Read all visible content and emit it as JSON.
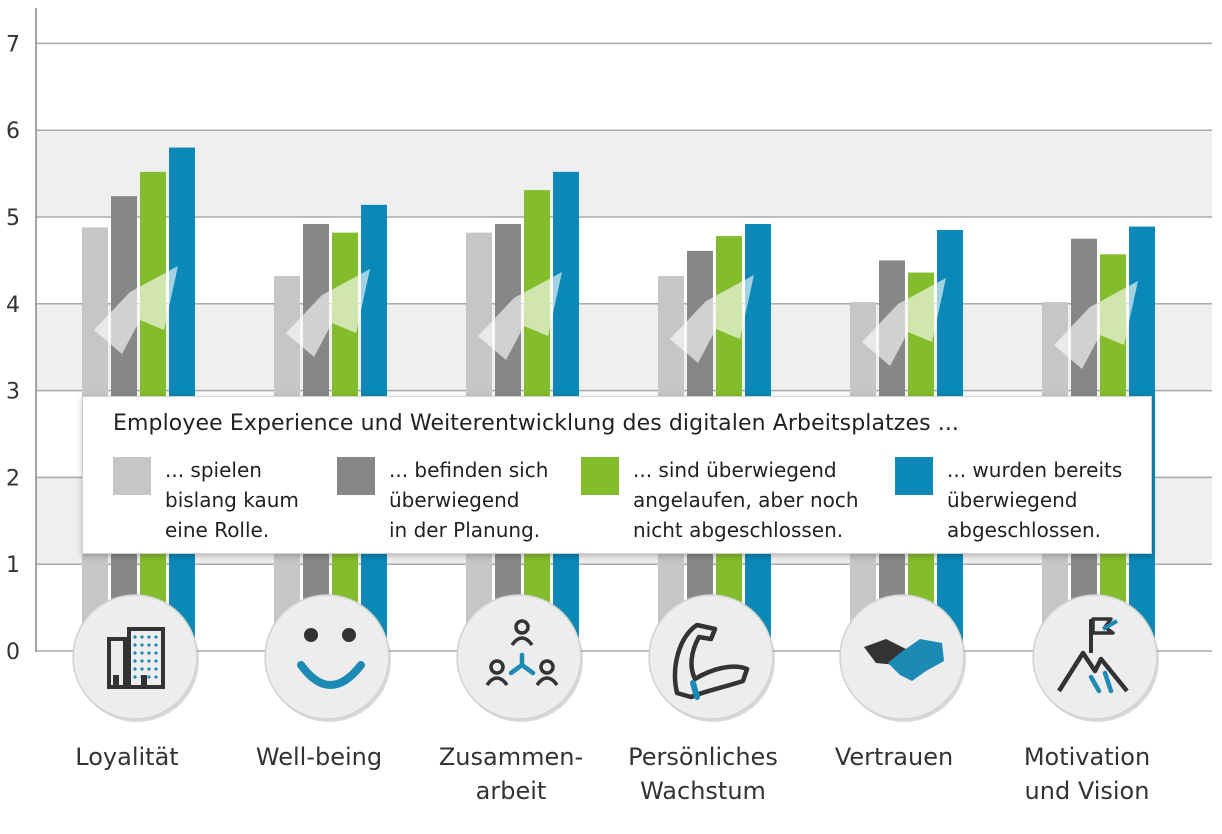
{
  "chart_data": {
    "type": "bar",
    "categories": [
      "Loyalität",
      "Well-being",
      "Zusammen-\narbeit",
      "Persönliches\nWachstum",
      "Vertrauen",
      "Motivation\nund Vision"
    ],
    "series": [
      {
        "name": "... spielen\nbislang kaum\neine Rolle.",
        "color": "#c6c6c6",
        "values": [
          4.88,
          4.32,
          4.82,
          4.32,
          4.02,
          4.02
        ]
      },
      {
        "name": "... befinden sich\nüberwiegend\nin der Planung.",
        "color": "#878787",
        "values": [
          5.24,
          4.92,
          4.92,
          4.61,
          4.5,
          4.75
        ]
      },
      {
        "name": "... sind überwiegend\nangelaufen, aber noch\nnicht abgeschlossen.",
        "color": "#84bd2c",
        "values": [
          5.52,
          4.82,
          5.31,
          4.78,
          4.36,
          4.57
        ]
      },
      {
        "name": "... wurden bereits\nüberwiegend\nabgeschlossen.",
        "color": "#0a88b7",
        "values": [
          5.8,
          5.14,
          5.52,
          4.92,
          4.85,
          4.89
        ]
      }
    ],
    "title": "Employee Experience und Weiterentwicklung des digitalen Arbeitsplatzes ...",
    "xlabel": "",
    "ylabel": "",
    "ylim": [
      0,
      7
    ],
    "yticks": [
      0,
      1,
      2,
      3,
      4,
      5,
      6,
      7
    ],
    "grid": true,
    "legend_position": "center",
    "icons": [
      "building-icon",
      "smiley-icon",
      "network-icon",
      "muscle-arm-icon",
      "handshake-icon",
      "mountain-flag-icon"
    ]
  }
}
